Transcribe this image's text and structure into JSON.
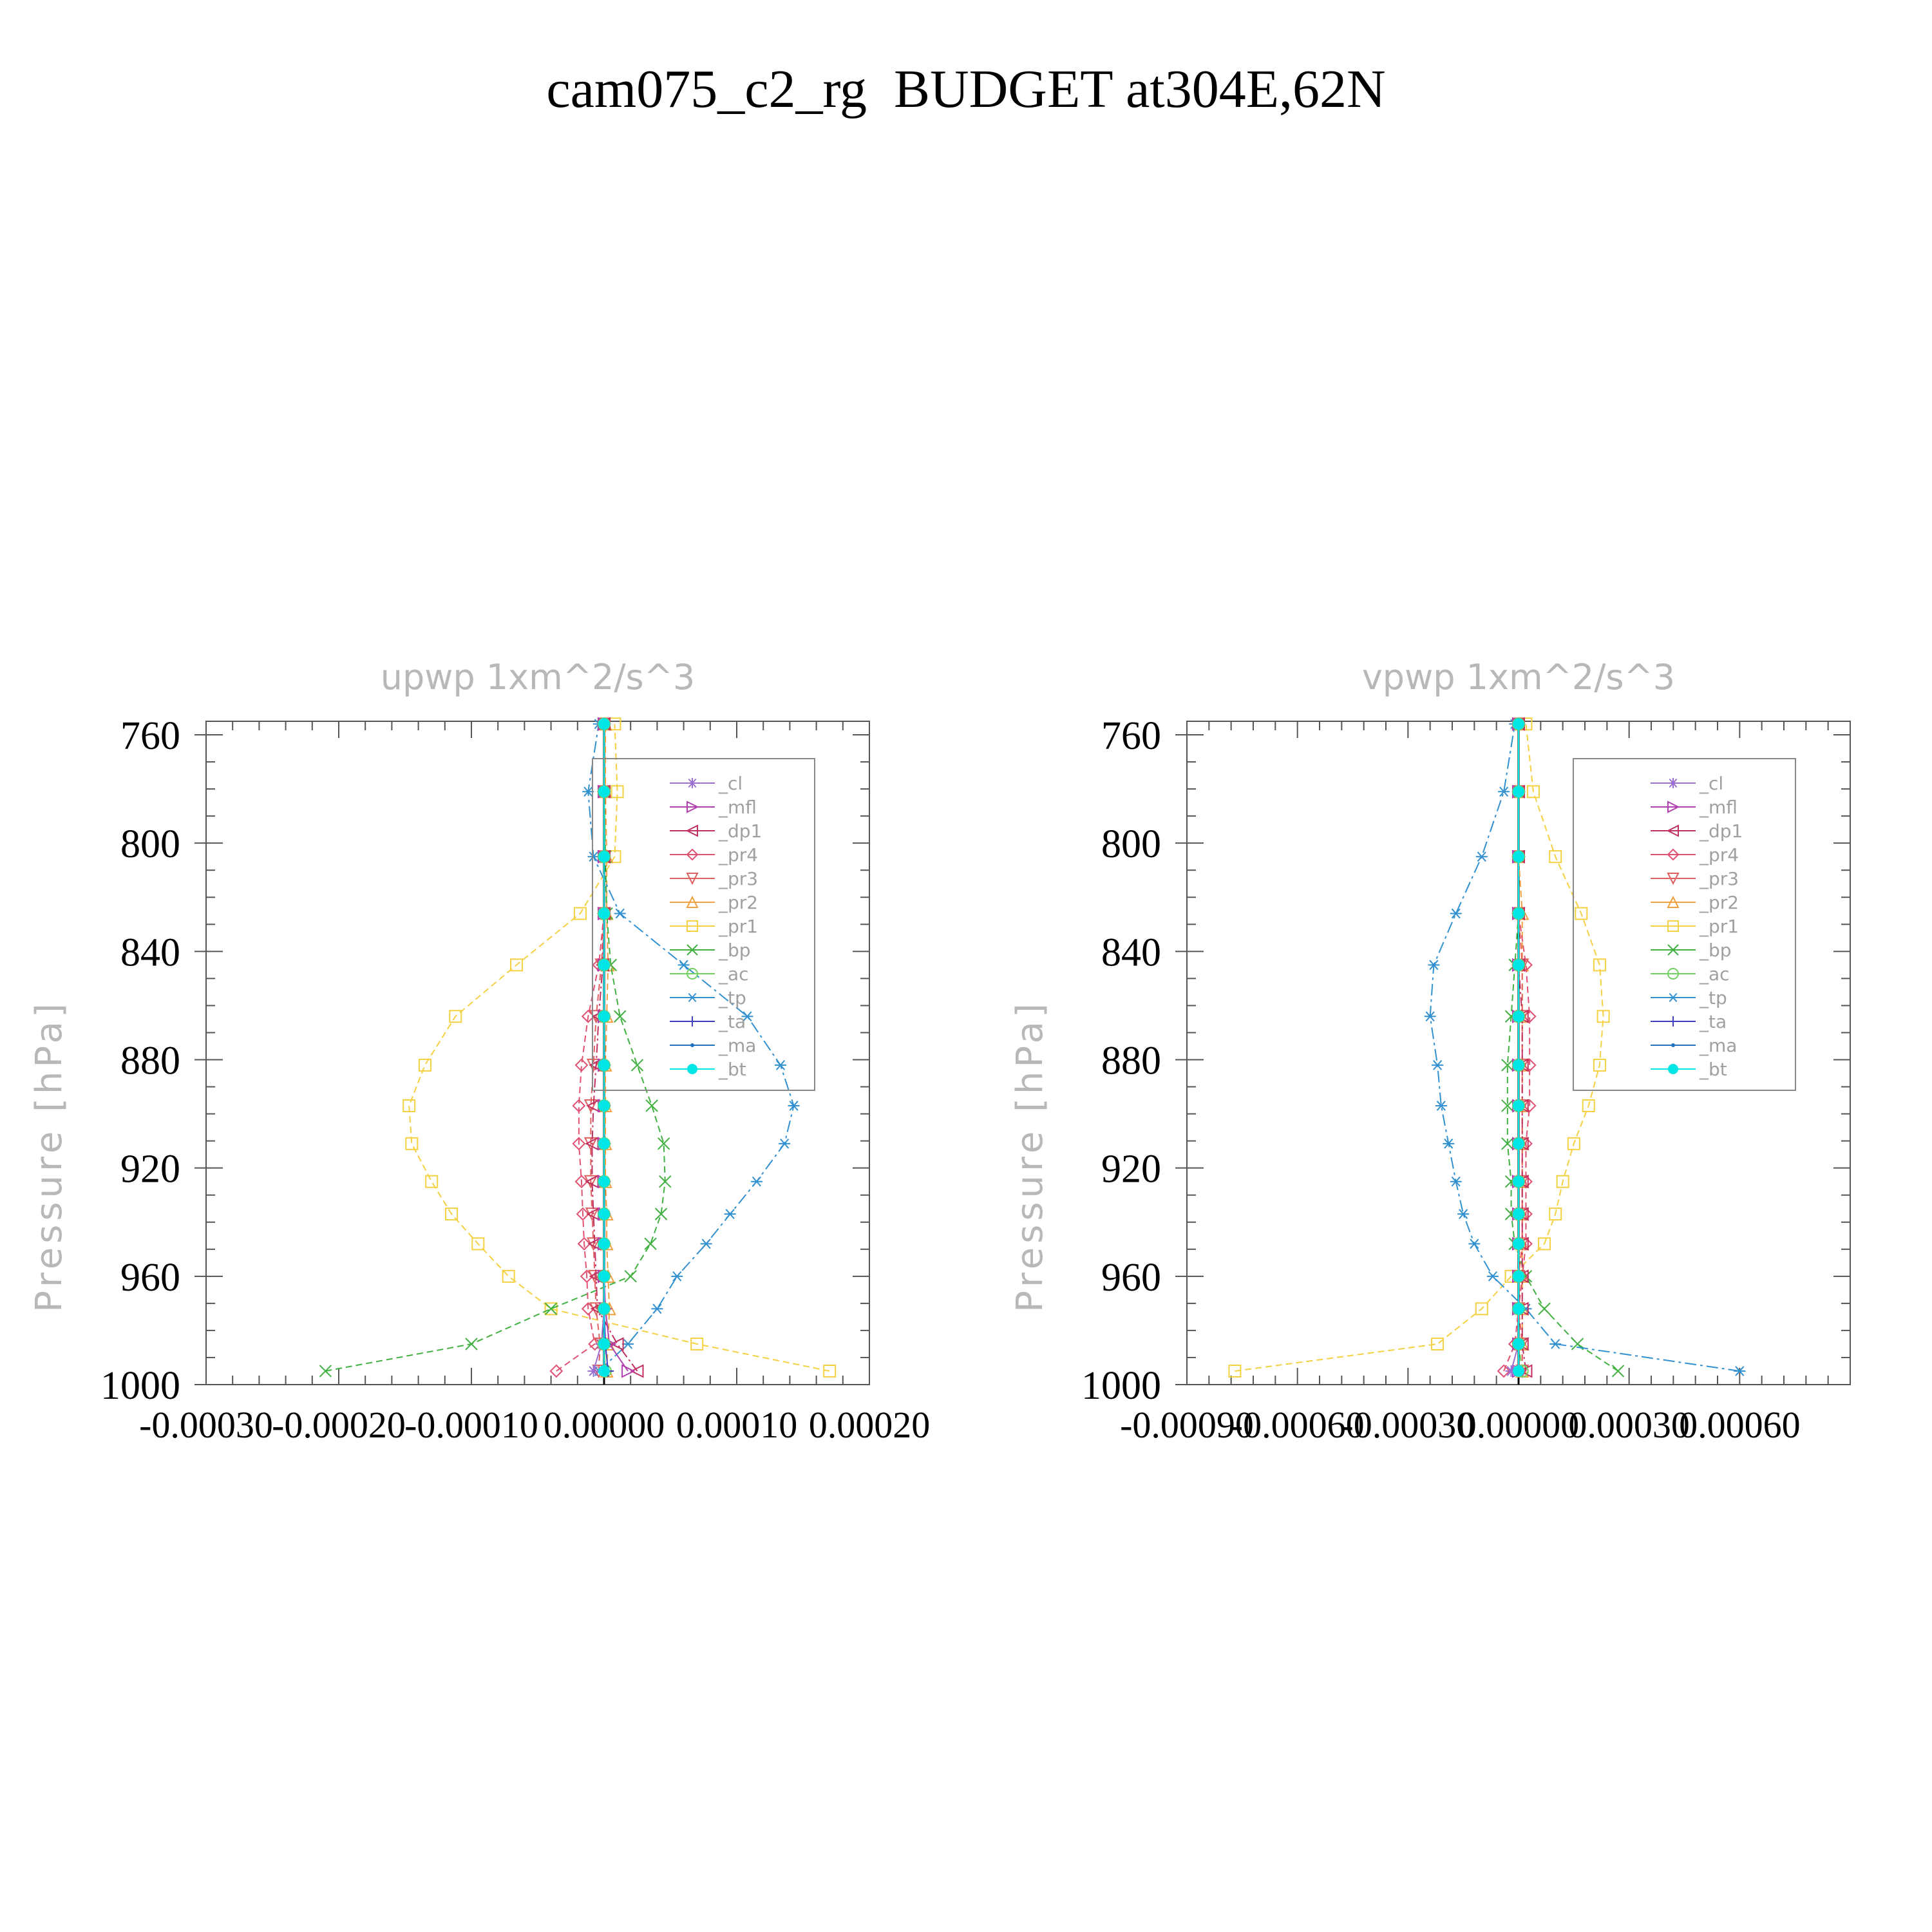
{
  "title": "cam075_c2_rg  BUDGET at304E,62N",
  "legend_items": [
    {
      "key": "cl",
      "label": "_cl",
      "color": "#9a6fd0",
      "marker": "star"
    },
    {
      "key": "mfl",
      "label": "_mfl",
      "color": "#b040b0",
      "marker": "tri-right"
    },
    {
      "key": "dp1",
      "label": "_dp1",
      "color": "#c03060",
      "marker": "tri-left"
    },
    {
      "key": "pr4",
      "label": "_pr4",
      "color": "#e05070",
      "marker": "diamond"
    },
    {
      "key": "pr3",
      "label": "_pr3",
      "color": "#e06060",
      "marker": "tri-down"
    },
    {
      "key": "pr2",
      "label": "_pr2",
      "color": "#f0a040",
      "marker": "tri-up"
    },
    {
      "key": "pr1",
      "label": "_pr1",
      "color": "#f5d040",
      "marker": "square"
    },
    {
      "key": "bp",
      "label": "_bp",
      "color": "#40b040",
      "marker": "x"
    },
    {
      "key": "ac",
      "label": "_ac",
      "color": "#70d060",
      "marker": "circle"
    },
    {
      "key": "tp",
      "label": "_tp",
      "color": "#3090d0",
      "marker": "asterisk"
    },
    {
      "key": "ta",
      "label": "_ta",
      "color": "#4040c0",
      "marker": "plus"
    },
    {
      "key": "ma",
      "label": "_ma",
      "color": "#2070c0",
      "marker": "dot"
    },
    {
      "key": "bt",
      "label": "_bt",
      "color": "#00e5e5",
      "marker": "filled-circle"
    }
  ],
  "chart_data": [
    {
      "type": "line",
      "title": "upwp   1xm^2/s^3",
      "ylabel": "Pressure [hPa]",
      "xlabel": "",
      "xlim": [
        -0.0003,
        0.0002
      ],
      "ylim": [
        1000,
        755
      ],
      "x_tick_labels": [
        "-0.00030",
        "-0.00020",
        "-0.00010",
        "0.00000",
        "0.00010",
        "0.00020"
      ],
      "x_ticks": [
        -0.0003,
        -0.0002,
        -0.0001,
        0.0,
        0.0001,
        0.0002
      ],
      "y_ticks": [
        760,
        800,
        840,
        880,
        920,
        960,
        1000
      ],
      "y_tick_labels": [
        "760",
        "800",
        "840",
        "880",
        "920",
        "960",
        "1000"
      ],
      "legend_position": "upper-right",
      "pressure_levels": [
        995,
        985,
        972,
        960,
        948,
        937,
        925,
        911,
        897,
        882,
        864,
        845,
        826,
        805,
        781,
        756
      ],
      "series": [
        {
          "key": "pr1",
          "x": [
            0.00017,
            7e-05,
            -4e-05,
            -7.2e-05,
            -9.5e-05,
            -0.000115,
            -0.00013,
            -0.000145,
            -0.000147,
            -0.000135,
            -0.000112,
            -6.6e-05,
            -1.8e-05,
            8e-06,
            1e-05,
            8e-06
          ]
        },
        {
          "key": "pr2",
          "x": [
            2e-06,
            3e-06,
            4e-06,
            3e-06,
            2e-06,
            2e-06,
            1e-06,
            1e-06,
            1e-06,
            1e-06,
            2e-06,
            3e-06,
            2e-06,
            2e-06,
            1e-06,
            1e-06
          ]
        },
        {
          "key": "bp",
          "x": [
            -0.00021,
            -0.0001,
            -4e-05,
            2e-05,
            3.5e-05,
            4.3e-05,
            4.6e-05,
            4.5e-05,
            3.6e-05,
            2.5e-05,
            1.2e-05,
            5e-06,
            2e-06,
            1e-06,
            0.0,
            0.0
          ]
        },
        {
          "key": "tp",
          "x": [
            -4e-06,
            1.8e-05,
            4e-05,
            5.5e-05,
            7.7e-05,
            9.5e-05,
            0.000115,
            0.000136,
            0.000143,
            0.000133,
            0.000108,
            6e-05,
            1.2e-05,
            -8e-06,
            -1.2e-05,
            -4e-06
          ]
        },
        {
          "key": "pr4",
          "x": [
            -3.6e-05,
            -7e-06,
            -1.2e-05,
            -1.3e-05,
            -1.5e-05,
            -1.6e-05,
            -1.7e-05,
            -1.9e-05,
            -1.9e-05,
            -1.7e-05,
            -1.2e-05,
            -4e-06,
            0.0,
            0.0,
            0.0,
            0.0
          ]
        },
        {
          "key": "pr3",
          "x": [
            -4e-06,
            -3e-06,
            -6e-06,
            -7e-06,
            -8e-06,
            -9e-06,
            -1e-05,
            -1e-05,
            -1e-05,
            -8e-06,
            -6e-06,
            -2e-06,
            0.0,
            0.0,
            0.0,
            0.0
          ]
        },
        {
          "key": "dp1",
          "x": [
            2.5e-05,
            1e-05,
            -5e-06,
            -6e-06,
            -7e-06,
            -8e-06,
            -9e-06,
            -9e-06,
            -8e-06,
            -6e-06,
            -4e-06,
            -1e-06,
            0.0,
            0.0,
            0.0,
            0.0
          ]
        },
        {
          "key": "mfl",
          "x": [
            1.8e-05,
            4e-06,
            1e-06,
            0.0,
            0.0,
            0.0,
            0.0,
            0.0,
            0.0,
            0.0,
            0.0,
            0.0,
            0.0,
            0.0,
            0.0,
            0.0
          ]
        },
        {
          "key": "cl",
          "x": [
            -8e-06,
            -2e-06,
            0.0,
            0.0,
            0.0,
            0.0,
            0.0,
            0.0,
            0.0,
            0.0,
            0.0,
            0.0,
            0.0,
            0.0,
            0.0,
            0.0
          ]
        },
        {
          "key": "ac",
          "x": [
            1e-06,
            0.0,
            0.0,
            0.0,
            0.0,
            0.0,
            0.0,
            0.0,
            0.0,
            0.0,
            0.0,
            0.0,
            0.0,
            0.0,
            0.0,
            0.0
          ]
        },
        {
          "key": "ta",
          "x": [
            3e-06,
            1e-06,
            0.0,
            0.0,
            0.0,
            0.0,
            0.0,
            0.0,
            0.0,
            0.0,
            0.0,
            0.0,
            0.0,
            0.0,
            0.0,
            0.0
          ]
        },
        {
          "key": "ma",
          "x": [
            0.0,
            0.0,
            0.0,
            0.0,
            0.0,
            0.0,
            0.0,
            0.0,
            0.0,
            0.0,
            0.0,
            0.0,
            0.0,
            0.0,
            0.0,
            0.0
          ]
        },
        {
          "key": "bt",
          "x": [
            0.0,
            0.0,
            0.0,
            0.0,
            0.0,
            0.0,
            0.0,
            0.0,
            0.0,
            0.0,
            0.0,
            0.0,
            0.0,
            0.0,
            0.0,
            0.0
          ]
        }
      ]
    },
    {
      "type": "line",
      "title": "vpwp   1xm^2/s^3",
      "ylabel": "Pressure [hPa]",
      "xlabel": "",
      "xlim": [
        -0.0009,
        0.0009
      ],
      "ylim": [
        1000,
        755
      ],
      "x_tick_labels": [
        "-0.00090",
        "-0.00060",
        "-0.00030",
        "0.00000",
        "0.00030",
        "0.00060"
      ],
      "x_ticks": [
        -0.0009,
        -0.0006,
        -0.0003,
        0.0,
        0.0003,
        0.0006
      ],
      "y_ticks": [
        760,
        800,
        840,
        880,
        920,
        960,
        1000
      ],
      "y_tick_labels": [
        "760",
        "800",
        "840",
        "880",
        "920",
        "960",
        "1000"
      ],
      "legend_position": "upper-right",
      "pressure_levels": [
        995,
        985,
        972,
        960,
        948,
        937,
        925,
        911,
        897,
        882,
        864,
        845,
        826,
        805,
        781,
        756
      ],
      "series": [
        {
          "key": "pr1",
          "x": [
            -0.00077,
            -0.00022,
            -0.0001,
            -2e-05,
            7e-05,
            0.0001,
            0.00012,
            0.00015,
            0.00019,
            0.00022,
            0.00023,
            0.00022,
            0.00017,
            0.0001,
            4e-05,
            2e-05
          ]
        },
        {
          "key": "pr2",
          "x": [
            1e-05,
            1e-05,
            1e-05,
            1e-05,
            1e-05,
            1e-05,
            1e-05,
            1e-05,
            1e-05,
            1e-05,
            1e-05,
            1e-05,
            1e-05,
            0.0,
            0.0,
            0.0
          ]
        },
        {
          "key": "bp",
          "x": [
            0.00027,
            0.00016,
            7e-05,
            2e-05,
            -1e-05,
            -2e-05,
            -2e-05,
            -3e-05,
            -3e-05,
            -3e-05,
            -2e-05,
            -1e-05,
            0.0,
            0.0,
            0.0,
            0.0
          ]
        },
        {
          "key": "tp",
          "x": [
            0.0006,
            0.0001,
            2e-05,
            -7e-05,
            -0.00012,
            -0.00015,
            -0.00017,
            -0.00019,
            -0.00021,
            -0.00022,
            -0.00024,
            -0.00023,
            -0.00017,
            -0.0001,
            -4e-05,
            -1e-05
          ]
        },
        {
          "key": "pr4",
          "x": [
            -4e-05,
            -1e-05,
            0.0,
            1e-05,
            2e-05,
            2e-05,
            2e-05,
            2e-05,
            3e-05,
            3e-05,
            3e-05,
            2e-05,
            0.0,
            0.0,
            0.0,
            0.0
          ]
        },
        {
          "key": "pr3",
          "x": [
            1e-05,
            1e-05,
            0.0,
            0.0,
            1e-05,
            1e-05,
            1e-05,
            1e-05,
            1e-05,
            1e-05,
            1e-05,
            1e-05,
            0.0,
            0.0,
            0.0,
            0.0
          ]
        },
        {
          "key": "dp1",
          "x": [
            2e-05,
            1e-05,
            1e-05,
            1e-05,
            1e-05,
            1e-05,
            1e-05,
            1e-05,
            1e-05,
            1e-05,
            1e-05,
            0.0,
            0.0,
            0.0,
            0.0,
            0.0
          ]
        },
        {
          "key": "mfl",
          "x": [
            0.0,
            0.0,
            0.0,
            0.0,
            0.0,
            0.0,
            0.0,
            0.0,
            0.0,
            0.0,
            0.0,
            0.0,
            0.0,
            0.0,
            0.0,
            0.0
          ]
        },
        {
          "key": "cl",
          "x": [
            -2e-05,
            0.0,
            0.0,
            0.0,
            0.0,
            0.0,
            0.0,
            0.0,
            0.0,
            0.0,
            0.0,
            0.0,
            0.0,
            0.0,
            0.0,
            0.0
          ]
        },
        {
          "key": "ac",
          "x": [
            1e-05,
            0.0,
            0.0,
            0.0,
            0.0,
            0.0,
            0.0,
            0.0,
            0.0,
            0.0,
            0.0,
            0.0,
            0.0,
            0.0,
            0.0,
            0.0
          ]
        },
        {
          "key": "ta",
          "x": [
            0.0,
            0.0,
            0.0,
            0.0,
            0.0,
            0.0,
            0.0,
            0.0,
            0.0,
            0.0,
            0.0,
            0.0,
            0.0,
            0.0,
            0.0,
            0.0
          ]
        },
        {
          "key": "ma",
          "x": [
            0.0,
            0.0,
            0.0,
            0.0,
            0.0,
            0.0,
            0.0,
            0.0,
            0.0,
            0.0,
            0.0,
            0.0,
            0.0,
            0.0,
            0.0,
            0.0
          ]
        },
        {
          "key": "bt",
          "x": [
            0.0,
            0.0,
            0.0,
            0.0,
            0.0,
            0.0,
            0.0,
            0.0,
            0.0,
            0.0,
            0.0,
            0.0,
            0.0,
            0.0,
            0.0,
            0.0
          ]
        }
      ]
    }
  ]
}
